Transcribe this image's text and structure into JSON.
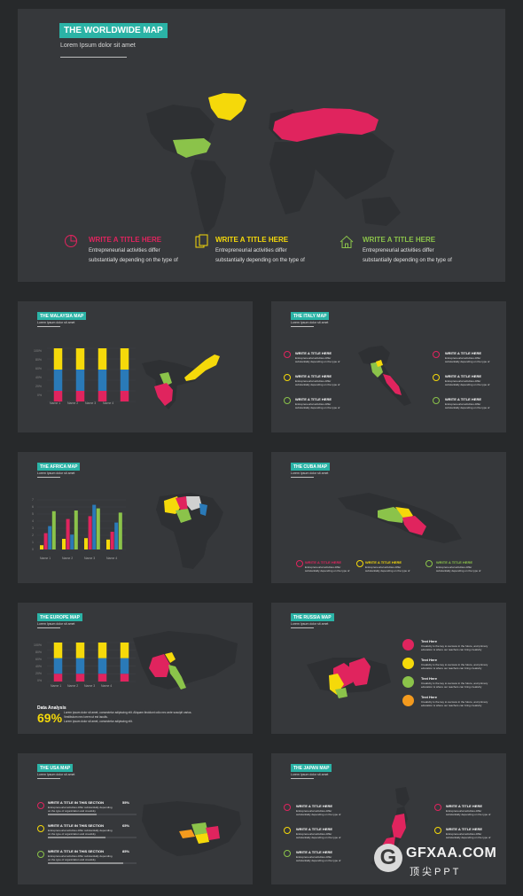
{
  "main": {
    "title": "THE WORLDWIDE MAP",
    "subtitle": "Lorem Ipsum dolor sit amet",
    "features": [
      {
        "title": "WRITE A TITLE  HERE",
        "line1": "Entrepreneurial  activities differ",
        "line2": "substantially  depending  on the type of",
        "color": "#e0245e",
        "icon": "pie-chart-icon"
      },
      {
        "title": "WRITE A TITLE  HERE",
        "line1": "Entrepreneurial  activities differ",
        "line2": "substantially  depending  on the type of",
        "color": "#f5d90a",
        "icon": "documents-icon"
      },
      {
        "title": "WRITE A TITLE  HERE",
        "line1": "Entrepreneurial  activities differ",
        "line2": "substantially  depending  on the type of",
        "color": "#8bc34a",
        "icon": "home-icon"
      }
    ]
  },
  "colors": {
    "pink": "#e0245e",
    "yellow": "#f5d90a",
    "green": "#8bc34a",
    "blue": "#2a7ab8",
    "orange": "#f39a1e",
    "teal": "#2bb3a6"
  },
  "slides": {
    "malaysia": {
      "title": "THE MALAYSIA MAP",
      "subtitle": "Lorem Ipsum dolor sit amet",
      "ticks": [
        "100%",
        "80%",
        "60%",
        "40%",
        "20%",
        "0%"
      ],
      "labels": [
        "Name 1",
        "Name 2",
        "Name 3",
        "Name 4"
      ]
    },
    "italy": {
      "title": "THE ITALY MAP",
      "subtitle": "Lorem Ipsum dolor sit amet",
      "item_title": "WRITE A TITLE HERE",
      "item_line1": "Entrepreneurial  activities differ",
      "item_line2": "substantially depending on the type of"
    },
    "africa": {
      "title": "THE AFRICA MAP",
      "subtitle": "Lorem Ipsum dolor sit amet",
      "ticks": [
        "7",
        "6",
        "5",
        "4",
        "3",
        "2",
        "1",
        "0"
      ],
      "labels": [
        "Name 1",
        "Name 2",
        "Name 3",
        "Name 4"
      ]
    },
    "cuba": {
      "title": "THE CUBA MAP",
      "subtitle": "Lorem Ipsum dolor sit amet",
      "item_title": "WRITE A TITLE HERE",
      "item_line1": "Entrepreneurial  activities differ",
      "item_line2": "substantially depending on the type of"
    },
    "europe": {
      "title": "THE EUROPE MAP",
      "subtitle": "Lorem Ipsum dolor sit amet",
      "ticks": [
        "100%",
        "80%",
        "60%",
        "40%",
        "20%",
        "0%"
      ],
      "labels": [
        "Name 1",
        "Name 2",
        "Name 3",
        "Name 4"
      ],
      "analysis_title": "Data Analysis",
      "analysis_value": "69%",
      "analysis_line1": "Lorem ipsum dolor sit amet, consectetur adipiscing elit. Aliquam tincidunt odio nec ante suscipit varius.",
      "analysis_line2": "Vestibulum nec lorem ut est iaculis.",
      "analysis_line3": "Lorem ipsum dolor sit amet, consectetur adipiscing elit."
    },
    "russia": {
      "title": "THE RUSSIA MAP",
      "subtitle": "Lorem Ipsum dolor sit amet",
      "item_title": "Text Here",
      "item_line1": "Creativity is the key to success in the future, and primary",
      "item_line2": "education is where our teachers can bring creativity"
    },
    "usa": {
      "title": "THE USA MAP",
      "subtitle": "Lorem Ipsum dolor sit amet",
      "items": [
        {
          "title": "WRITE A TITLE IN THIS SECTION",
          "pct": "55%",
          "value": 55
        },
        {
          "title": "WRITE A TITLE IN THIS SECTION",
          "pct": "65%",
          "value": 65
        },
        {
          "title": "WRITE A TITLE IN THIS SECTION",
          "pct": "85%",
          "value": 85
        }
      ],
      "item_line1": "Entrepreneurial activities differ substantially depending",
      "item_line2": "on the type of organization and creativity"
    },
    "japan": {
      "title": "THE JAPAN MAP",
      "subtitle": "Lorem Ipsum dolor sit amet",
      "item_title": "WRITE A TITLE HERE",
      "item_line1": "Entrepreneurial  activities differ",
      "item_line2": "substantially depending on the type of"
    }
  },
  "watermark": {
    "brand": "GFXAA.COM",
    "sub": "顶尖PPT",
    "mark": "G"
  },
  "chart_data": [
    {
      "type": "bar",
      "title": "THE MALAYSIA MAP",
      "categories": [
        "Name 1",
        "Name 2",
        "Name 3",
        "Name 4"
      ],
      "ylim": [
        0,
        100
      ],
      "series": [
        {
          "values": [
            20,
            20,
            20,
            20
          ],
          "color": "#e0245e"
        },
        {
          "values": [
            40,
            40,
            40,
            40
          ],
          "color": "#2a7ab8"
        },
        {
          "values": [
            40,
            40,
            40,
            40
          ],
          "color": "#f5d90a"
        }
      ]
    },
    {
      "type": "bar",
      "title": "THE AFRICA MAP",
      "categories": [
        "Name 1",
        "Name 2",
        "Name 3",
        "Name 4"
      ],
      "ylim": [
        0,
        7
      ],
      "series": [
        {
          "values": [
            0.6,
            1.5,
            1.6,
            1.4
          ],
          "color": "#f5d90a"
        },
        {
          "values": [
            2.3,
            4.3,
            4.7,
            2.5
          ],
          "color": "#e0245e"
        },
        {
          "values": [
            3.3,
            2.1,
            6.3,
            3.8
          ],
          "color": "#2a7ab8"
        },
        {
          "values": [
            5.4,
            5.5,
            5.8,
            5.2
          ],
          "color": "#8bc34a"
        }
      ]
    },
    {
      "type": "bar",
      "title": "THE EUROPE MAP",
      "categories": [
        "Name 1",
        "Name 2",
        "Name 3",
        "Name 4"
      ],
      "ylim": [
        0,
        100
      ],
      "series": [
        {
          "values": [
            20,
            20,
            20,
            20
          ],
          "color": "#e0245e"
        },
        {
          "values": [
            40,
            40,
            40,
            40
          ],
          "color": "#2a7ab8"
        },
        {
          "values": [
            40,
            40,
            40,
            40
          ],
          "color": "#f5d90a"
        }
      ]
    }
  ]
}
